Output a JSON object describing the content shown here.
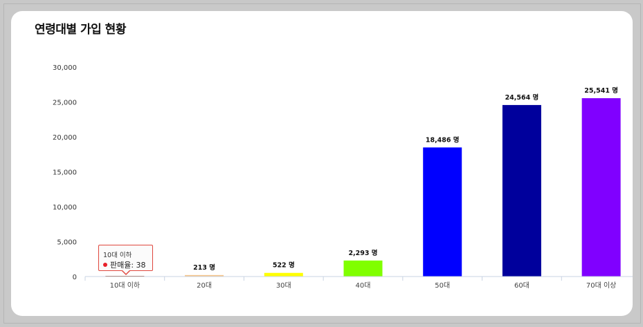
{
  "chart_data": {
    "type": "bar",
    "title": "연령대별 가입 현황",
    "categories": [
      "10대 이하",
      "20대",
      "30대",
      "40대",
      "50대",
      "60대",
      "70대 이상"
    ],
    "values": [
      38,
      213,
      522,
      2293,
      18486,
      24564,
      25541
    ],
    "data_labels": [
      "",
      "213 명",
      "522 명",
      "2,293 명",
      "18,486 명",
      "24,564 명",
      "25,541 명"
    ],
    "colors": [
      "#a0522d",
      "#f5c58a",
      "#ffff00",
      "#80ff00",
      "#0000ff",
      "#00009c",
      "#8000ff"
    ],
    "ylim": [
      0,
      30000
    ],
    "yticks": [
      0,
      5000,
      10000,
      15000,
      20000,
      25000,
      30000
    ],
    "ytick_labels": [
      "0",
      "5,000",
      "10,000",
      "15,000",
      "20,000",
      "25,000",
      "30,000"
    ],
    "grid": false,
    "legend": "none"
  },
  "tooltip": {
    "category": "10대 이하",
    "label": "판매율: 38",
    "marker_color": "#e8202a"
  }
}
